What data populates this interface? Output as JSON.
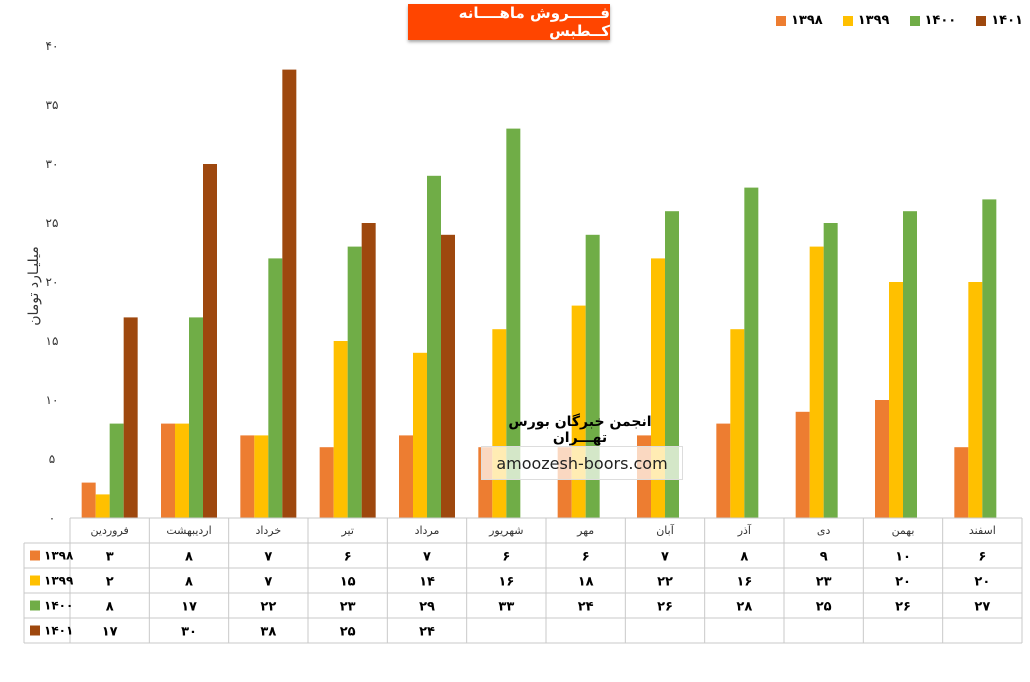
{
  "title": "فــــــروش ماهــــانه کــطبس",
  "colors": {
    "title_bg": "#ff4500",
    "text": "#000000"
  },
  "watermark": {
    "title": "انجمن خبرگان بورس تهـــران",
    "url": "amoozesh-boors.com"
  },
  "chart_data": {
    "type": "bar",
    "ylabel": "میلیـارد تومان",
    "ylim": [
      0,
      40
    ],
    "yticks": [
      "۰",
      "۵",
      "۱۰",
      "۱۵",
      "۲۰",
      "۲۵",
      "۳۰",
      "۳۵",
      "۴۰"
    ],
    "categories": [
      "فروردین",
      "اردیبهشت",
      "خرداد",
      "تیر",
      "مرداد",
      "شهریور",
      "مهر",
      "آبان",
      "آذر",
      "دی",
      "بهمن",
      "اسفند"
    ],
    "legend_position": "top-right",
    "grid": false,
    "series": [
      {
        "name": "۱۳۹۸",
        "color": "#ed7d31",
        "values": [
          3,
          8,
          7,
          6,
          7,
          6,
          6,
          7,
          8,
          9,
          10,
          6
        ],
        "labels": [
          "۳",
          "۸",
          "۷",
          "۶",
          "۷",
          "۶",
          "۶",
          "۷",
          "۸",
          "۹",
          "۱۰",
          "۶"
        ]
      },
      {
        "name": "۱۳۹۹",
        "color": "#ffc000",
        "values": [
          2,
          8,
          7,
          15,
          14,
          16,
          18,
          22,
          16,
          23,
          20,
          20
        ],
        "labels": [
          "۲",
          "۸",
          "۷",
          "۱۵",
          "۱۴",
          "۱۶",
          "۱۸",
          "۲۲",
          "۱۶",
          "۲۳",
          "۲۰",
          "۲۰"
        ]
      },
      {
        "name": "۱۴۰۰",
        "color": "#70ad47",
        "values": [
          8,
          17,
          22,
          23,
          29,
          33,
          24,
          26,
          28,
          25,
          26,
          27
        ],
        "labels": [
          "۸",
          "۱۷",
          "۲۲",
          "۲۳",
          "۲۹",
          "۳۳",
          "۲۴",
          "۲۶",
          "۲۸",
          "۲۵",
          "۲۶",
          "۲۷"
        ]
      },
      {
        "name": "۱۴۰۱",
        "color": "#9e480e",
        "values": [
          17,
          30,
          38,
          25,
          24,
          null,
          null,
          null,
          null,
          null,
          null,
          null
        ],
        "labels": [
          "۱۷",
          "۳۰",
          "۳۸",
          "۲۵",
          "۲۴",
          "",
          "",
          "",
          "",
          "",
          "",
          ""
        ]
      }
    ]
  }
}
